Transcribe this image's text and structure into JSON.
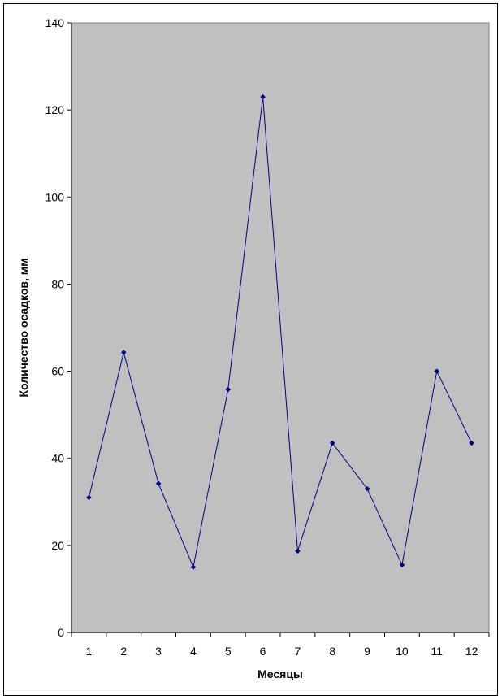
{
  "chart_data": {
    "type": "line",
    "title": "",
    "xlabel": "Месяцы",
    "ylabel": "Количество осадков, мм",
    "categories": [
      "1",
      "2",
      "3",
      "4",
      "5",
      "6",
      "7",
      "8",
      "9",
      "10",
      "11",
      "12"
    ],
    "series": [
      {
        "values": [
          31,
          64.3,
          34.2,
          15,
          55.8,
          123,
          18.7,
          43.5,
          33,
          15.5,
          60,
          43.5
        ]
      }
    ],
    "ylim": [
      0,
      140
    ],
    "yticks": [
      0,
      20,
      40,
      60,
      80,
      100,
      120,
      140
    ],
    "grid": false,
    "legend": "none",
    "colors": {
      "plot_background": "#c0c0c0",
      "line": "#000080",
      "marker": "#000080",
      "axis": "#000000"
    },
    "marker": "diamond"
  }
}
